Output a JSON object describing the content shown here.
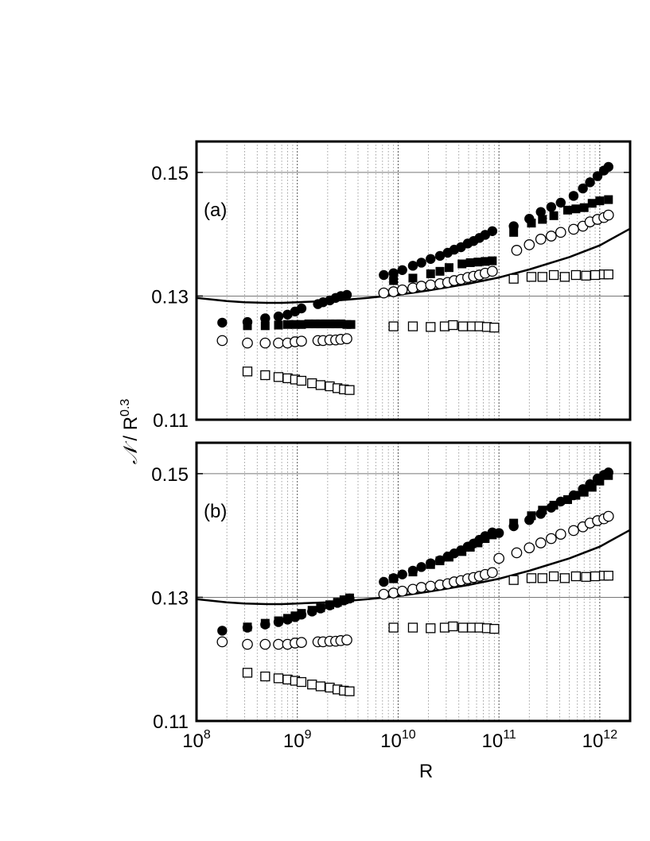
{
  "chart_data": {
    "type": "scatter",
    "x_axis": {
      "label": "R",
      "scale": "log",
      "range": [
        100000000,
        2000000000000
      ],
      "major_ticks": [
        100000000,
        1000000000,
        10000000000,
        100000000000,
        1000000000000
      ],
      "tick_labels": [
        {
          "base": "10",
          "exp": "8"
        },
        {
          "base": "10",
          "exp": "9"
        },
        {
          "base": "10",
          "exp": "10"
        },
        {
          "base": "10",
          "exp": "11"
        },
        {
          "base": "10",
          "exp": "12"
        }
      ],
      "minor_grid": true
    },
    "y_axis": {
      "label_symbol": "𝒩",
      "label_rest": " / R",
      "label_exp": "0.3",
      "range": [
        0.11,
        0.155
      ],
      "ticks": [
        0.11,
        0.13,
        0.15
      ],
      "tick_labels": [
        "0.11",
        "0.13",
        "0.15"
      ],
      "grid": true
    },
    "panels": [
      {
        "label": "(a)",
        "series": [
          {
            "marker": "filled-circle",
            "x": [
              180000000.0,
              320000000.0,
              480000000.0,
              650000000.0,
              800000000.0,
              950000000.0,
              1100000000.0,
              1600000000.0,
              1800000000.0,
              2100000000.0,
              2400000000.0,
              2700000000.0,
              3100000000.0,
              7200000000.0,
              9000000000.0,
              11000000000.0,
              14000000000.0,
              17000000000.0,
              21000000000.0,
              26000000000.0,
              31000000000.0,
              36000000000.0,
              42000000000.0,
              49000000000.0,
              56000000000.0,
              64000000000.0,
              73000000000.0,
              86000000000.0,
              140000000000.0,
              200000000000.0,
              260000000000.0,
              330000000000.0,
              410000000000.0,
              550000000000.0,
              680000000000.0,
              800000000000.0,
              950000000000.0,
              1100000000000.0,
              1220000000000.0
            ],
            "y": [
              0.1257,
              0.1258,
              0.1264,
              0.1267,
              0.127,
              0.1275,
              0.128,
              0.1287,
              0.129,
              0.1293,
              0.1297,
              0.13,
              0.1302,
              0.1334,
              0.1337,
              0.1342,
              0.1349,
              0.1354,
              0.136,
              0.1365,
              0.137,
              0.1375,
              0.1379,
              0.1385,
              0.1389,
              0.1394,
              0.1399,
              0.1405,
              0.1413,
              0.1425,
              0.1436,
              0.1444,
              0.1451,
              0.1462,
              0.1474,
              0.1484,
              0.1494,
              0.1503,
              0.1509
            ]
          },
          {
            "marker": "filled-square",
            "x": [
              320000000.0,
              480000000.0,
              650000000.0,
              800000000.0,
              950000000.0,
              1100000000.0,
              1300000000.0,
              1500000000.0,
              1700000000.0,
              1900000000.0,
              2100000000.0,
              2400000000.0,
              2700000000.0,
              3100000000.0,
              3400000000.0,
              9000000000.0,
              14000000000.0,
              21000000000.0,
              26000000000.0,
              32000000000.0,
              43000000000.0,
              52000000000.0,
              62000000000.0,
              73000000000.0,
              86000000000.0,
              140000000000.0,
              210000000000.0,
              270000000000.0,
              350000000000.0,
              480000000000.0,
              580000000000.0,
              700000000000.0,
              840000000000.0,
              1000000000000.0,
              1220000000000.0
            ],
            "y": [
              0.1252,
              0.1252,
              0.1253,
              0.1254,
              0.1254,
              0.1254,
              0.1255,
              0.1255,
              0.1255,
              0.1255,
              0.1255,
              0.1255,
              0.1255,
              0.1254,
              0.1254,
              0.1325,
              0.1329,
              0.1336,
              0.134,
              0.1346,
              0.1352,
              0.1354,
              0.1355,
              0.1356,
              0.1357,
              0.1403,
              0.1418,
              0.1424,
              0.143,
              0.1439,
              0.1441,
              0.1443,
              0.145,
              0.1454,
              0.1456
            ]
          },
          {
            "marker": "open-circle",
            "x": [
              180000000.0,
              320000000.0,
              480000000.0,
              650000000.0,
              800000000.0,
              950000000.0,
              1100000000.0,
              1600000000.0,
              1800000000.0,
              2100000000.0,
              2400000000.0,
              2700000000.0,
              3100000000.0,
              7200000000.0,
              9000000000.0,
              11000000000.0,
              14000000000.0,
              17000000000.0,
              21000000000.0,
              26000000000.0,
              31000000000.0,
              36000000000.0,
              42000000000.0,
              49000000000.0,
              56000000000.0,
              64000000000.0,
              73000000000.0,
              86000000000.0,
              150000000000.0,
              200000000000.0,
              260000000000.0,
              330000000000.0,
              410000000000.0,
              550000000000.0,
              680000000000.0,
              800000000000.0,
              950000000000.0,
              1100000000000.0,
              1220000000000.0
            ],
            "y": [
              0.1228,
              0.1224,
              0.1224,
              0.1224,
              0.1224,
              0.1226,
              0.1227,
              0.1228,
              0.1228,
              0.1229,
              0.1229,
              0.123,
              0.1231,
              0.1305,
              0.1307,
              0.131,
              0.1313,
              0.1316,
              0.1318,
              0.132,
              0.1322,
              0.1325,
              0.1327,
              0.133,
              0.1332,
              0.1334,
              0.1337,
              0.134,
              0.1374,
              0.1383,
              0.1392,
              0.1397,
              0.1403,
              0.1408,
              0.1413,
              0.142,
              0.1424,
              0.1427,
              0.1431
            ]
          },
          {
            "marker": "open-square",
            "x": [
              320000000.0,
              480000000.0,
              650000000.0,
              800000000.0,
              950000000.0,
              1100000000.0,
              1400000000.0,
              1700000000.0,
              2100000000.0,
              2500000000.0,
              2900000000.0,
              3300000000.0,
              9000000000.0,
              14000000000.0,
              21000000000.0,
              29000000000.0,
              35000000000.0,
              44000000000.0,
              54000000000.0,
              64000000000.0,
              76000000000.0,
              90000000000.0,
              140000000000.0,
              210000000000.0,
              270000000000.0,
              350000000000.0,
              450000000000.0,
              580000000000.0,
              730000000000.0,
              900000000000.0,
              1100000000000.0,
              1220000000000.0
            ],
            "y": [
              0.1178,
              0.1172,
              0.1169,
              0.1167,
              0.1165,
              0.1163,
              0.1159,
              0.1156,
              0.1154,
              0.1151,
              0.1149,
              0.1148,
              0.1251,
              0.1251,
              0.125,
              0.1251,
              0.1253,
              0.1251,
              0.1251,
              0.1251,
              0.125,
              0.1249,
              0.1328,
              0.1331,
              0.1331,
              0.1334,
              0.1331,
              0.1334,
              0.1333,
              0.1334,
              0.1335,
              0.1335
            ]
          }
        ],
        "fit_curve": {
          "x": [
            100000000.0,
            200000000.0,
            300000000.0,
            500000000.0,
            700000000.0,
            1000000000.0,
            2000000000.0,
            3000000000.0,
            5000000000.0,
            10000000000.0,
            20000000000.0,
            50000000000.0,
            100000000000.0,
            200000000000.0,
            500000000000.0,
            1000000000000.0,
            2000000000000.0
          ],
          "y": [
            0.1297,
            0.1292,
            0.129,
            0.1289,
            0.1289,
            0.129,
            0.1292,
            0.1294,
            0.1297,
            0.1302,
            0.1309,
            0.132,
            0.133,
            0.1343,
            0.1363,
            0.1382,
            0.1409
          ]
        }
      },
      {
        "label": "(b)",
        "series": [
          {
            "marker": "filled-circle",
            "x": [
              180000000.0,
              320000000.0,
              480000000.0,
              650000000.0,
              800000000.0,
              950000000.0,
              1100000000.0,
              1400000000.0,
              1700000000.0,
              2100000000.0,
              2500000000.0,
              2900000000.0,
              3300000000.0,
              7200000000.0,
              9000000000.0,
              11000000000.0,
              14000000000.0,
              17000000000.0,
              21000000000.0,
              26000000000.0,
              31000000000.0,
              36000000000.0,
              42000000000.0,
              49000000000.0,
              56000000000.0,
              64000000000.0,
              73000000000.0,
              86000000000.0,
              100000000000.0,
              140000000000.0,
              200000000000.0,
              260000000000.0,
              330000000000.0,
              410000000000.0,
              550000000000.0,
              680000000000.0,
              800000000000.0,
              950000000000.0,
              1100000000000.0,
              1220000000000.0
            ],
            "y": [
              0.1246,
              0.1251,
              0.1256,
              0.126,
              0.1264,
              0.1268,
              0.1272,
              0.1277,
              0.1282,
              0.1287,
              0.1291,
              0.1295,
              0.1298,
              0.1325,
              0.1331,
              0.1337,
              0.1343,
              0.1349,
              0.1355,
              0.136,
              0.1366,
              0.1371,
              0.1376,
              0.1382,
              0.1387,
              0.1393,
              0.1399,
              0.1405,
              0.1404,
              0.1415,
              0.1425,
              0.1435,
              0.1445,
              0.1455,
              0.1465,
              0.1475,
              0.1483,
              0.1492,
              0.1498,
              0.1502
            ]
          },
          {
            "marker": "filled-square",
            "x": [
              320000000.0,
              480000000.0,
              650000000.0,
              800000000.0,
              950000000.0,
              1100000000.0,
              1400000000.0,
              1700000000.0,
              2100000000.0,
              2500000000.0,
              2900000000.0,
              3300000000.0,
              9000000000.0,
              14000000000.0,
              21000000000.0,
              26000000000.0,
              32000000000.0,
              43000000000.0,
              52000000000.0,
              62000000000.0,
              73000000000.0,
              86000000000.0,
              140000000000.0,
              210000000000.0,
              270000000000.0,
              350000000000.0,
              480000000000.0,
              580000000000.0,
              700000000000.0,
              840000000000.0,
              1000000000000.0,
              1220000000000.0
            ],
            "y": [
              0.1252,
              0.1258,
              0.1262,
              0.1266,
              0.127,
              0.1274,
              0.1279,
              0.1283,
              0.1288,
              0.1292,
              0.1296,
              0.1299,
              0.133,
              0.1341,
              0.1353,
              0.1359,
              0.1365,
              0.1374,
              0.1381,
              0.1388,
              0.1395,
              0.1401,
              0.142,
              0.1432,
              0.1441,
              0.1449,
              0.1458,
              0.1465,
              0.147,
              0.1478,
              0.1488,
              0.1497
            ]
          },
          {
            "marker": "open-circle",
            "x": [
              180000000.0,
              320000000.0,
              480000000.0,
              650000000.0,
              800000000.0,
              950000000.0,
              1100000000.0,
              1600000000.0,
              1800000000.0,
              2100000000.0,
              2400000000.0,
              2700000000.0,
              3100000000.0,
              7200000000.0,
              9000000000.0,
              11000000000.0,
              14000000000.0,
              17000000000.0,
              21000000000.0,
              26000000000.0,
              31000000000.0,
              36000000000.0,
              42000000000.0,
              49000000000.0,
              56000000000.0,
              64000000000.0,
              73000000000.0,
              86000000000.0,
              100000000000.0,
              150000000000.0,
              200000000000.0,
              260000000000.0,
              330000000000.0,
              410000000000.0,
              550000000000.0,
              680000000000.0,
              800000000000.0,
              950000000000.0,
              1100000000000.0,
              1220000000000.0
            ],
            "y": [
              0.1228,
              0.1224,
              0.1224,
              0.1224,
              0.1224,
              0.1226,
              0.1227,
              0.1228,
              0.1228,
              0.1229,
              0.1229,
              0.123,
              0.1231,
              0.1305,
              0.1307,
              0.131,
              0.1313,
              0.1316,
              0.1318,
              0.132,
              0.1322,
              0.1325,
              0.1327,
              0.133,
              0.1332,
              0.1334,
              0.1337,
              0.134,
              0.1363,
              0.1372,
              0.138,
              0.1388,
              0.1395,
              0.1402,
              0.1408,
              0.1414,
              0.142,
              0.1424,
              0.1427,
              0.1431
            ]
          },
          {
            "marker": "open-square",
            "x": [
              320000000.0,
              480000000.0,
              650000000.0,
              800000000.0,
              950000000.0,
              1100000000.0,
              1400000000.0,
              1700000000.0,
              2100000000.0,
              2500000000.0,
              2900000000.0,
              3300000000.0,
              9000000000.0,
              14000000000.0,
              21000000000.0,
              29000000000.0,
              35000000000.0,
              44000000000.0,
              54000000000.0,
              64000000000.0,
              76000000000.0,
              90000000000.0,
              140000000000.0,
              210000000000.0,
              270000000000.0,
              350000000000.0,
              450000000000.0,
              580000000000.0,
              730000000000.0,
              900000000000.0,
              1100000000000.0,
              1220000000000.0
            ],
            "y": [
              0.1178,
              0.1172,
              0.1169,
              0.1167,
              0.1165,
              0.1163,
              0.1159,
              0.1156,
              0.1154,
              0.1151,
              0.1149,
              0.1148,
              0.1251,
              0.1251,
              0.125,
              0.1251,
              0.1253,
              0.1251,
              0.1251,
              0.1251,
              0.125,
              0.1249,
              0.1328,
              0.1331,
              0.1331,
              0.1334,
              0.1331,
              0.1334,
              0.1333,
              0.1334,
              0.1335,
              0.1335
            ]
          }
        ],
        "fit_curve": {
          "x": [
            100000000.0,
            200000000.0,
            300000000.0,
            500000000.0,
            700000000.0,
            1000000000.0,
            2000000000.0,
            3000000000.0,
            5000000000.0,
            10000000000.0,
            20000000000.0,
            50000000000.0,
            100000000000.0,
            200000000000.0,
            500000000000.0,
            1000000000000.0,
            2000000000000.0
          ],
          "y": [
            0.1297,
            0.1292,
            0.129,
            0.1289,
            0.1289,
            0.129,
            0.1292,
            0.1294,
            0.1297,
            0.1302,
            0.1309,
            0.132,
            0.133,
            0.1343,
            0.1363,
            0.1382,
            0.1409
          ]
        }
      }
    ]
  }
}
